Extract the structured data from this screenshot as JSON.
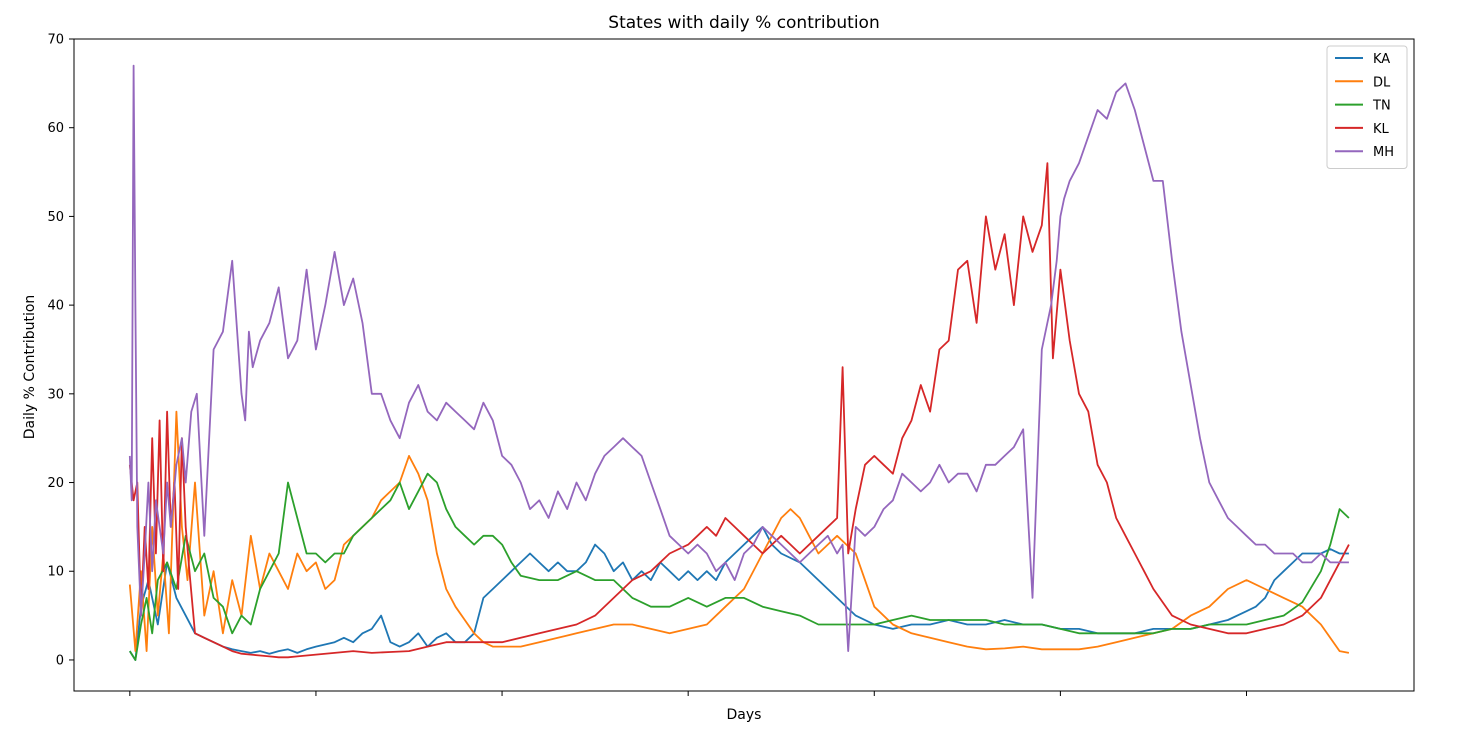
{
  "chart_data": {
    "type": "line",
    "title": "States with daily % contribution",
    "xlabel": "Days",
    "ylabel": "Daily % Contribution",
    "ylim": [
      -3.5,
      70
    ],
    "xlim": [
      -30,
      690
    ],
    "y_ticks": [
      0,
      10,
      20,
      30,
      40,
      50,
      60,
      70
    ],
    "x_ticks": [
      0,
      100,
      200,
      300,
      400,
      500,
      600
    ],
    "x_tick_labels_shown": false,
    "grid": false,
    "legend_position": "top-right",
    "series": [
      {
        "name": "KA",
        "color": "#1f77b4",
        "x": [
          0,
          3,
          6,
          10,
          15,
          20,
          25,
          30,
          35,
          40,
          45,
          50,
          55,
          60,
          65,
          70,
          75,
          80,
          85,
          90,
          95,
          100,
          110,
          115,
          120,
          125,
          130,
          135,
          140,
          145,
          150,
          155,
          160,
          165,
          170,
          175,
          180,
          185,
          190,
          195,
          200,
          205,
          210,
          215,
          220,
          225,
          230,
          235,
          240,
          245,
          250,
          255,
          260,
          265,
          270,
          275,
          280,
          285,
          290,
          295,
          300,
          305,
          310,
          315,
          320,
          325,
          330,
          335,
          340,
          345,
          350,
          360,
          370,
          380,
          390,
          400,
          410,
          420,
          430,
          440,
          450,
          460,
          470,
          480,
          490,
          500,
          510,
          520,
          530,
          540,
          550,
          560,
          570,
          580,
          590,
          600,
          605,
          610,
          615,
          620,
          625,
          630,
          635,
          640,
          645,
          650,
          655
        ],
        "values": [
          1,
          0,
          6,
          9,
          4,
          11,
          7,
          5,
          3,
          2.5,
          2,
          1.5,
          1.2,
          1,
          0.8,
          1,
          0.7,
          1,
          1.2,
          0.8,
          1.2,
          1.5,
          2,
          2.5,
          2,
          3,
          3.5,
          5,
          2,
          1.5,
          2,
          3,
          1.5,
          2.5,
          3,
          2,
          2,
          3,
          7,
          8,
          9,
          10,
          11,
          12,
          11,
          10,
          11,
          10,
          10,
          11,
          13,
          12,
          10,
          11,
          9,
          10,
          9,
          11,
          10,
          9,
          10,
          9,
          10,
          9,
          11,
          12,
          13,
          14,
          15,
          13,
          12,
          11,
          9,
          7,
          5,
          4,
          3.5,
          4,
          4,
          4.5,
          4,
          4,
          4.5,
          4,
          4,
          3.5,
          3.5,
          3,
          3,
          3,
          3.5,
          3.5,
          3.5,
          4,
          4.5,
          5.5,
          6,
          7,
          9,
          10,
          11,
          12,
          12,
          12,
          12.5,
          12,
          12
        ]
      },
      {
        "name": "DL",
        "color": "#ff7f0e",
        "x": [
          0,
          3,
          6,
          9,
          12,
          15,
          18,
          21,
          25,
          28,
          31,
          35,
          40,
          45,
          50,
          55,
          60,
          65,
          70,
          75,
          80,
          85,
          90,
          95,
          100,
          105,
          110,
          115,
          120,
          125,
          130,
          135,
          140,
          145,
          150,
          155,
          160,
          165,
          170,
          175,
          180,
          185,
          190,
          195,
          200,
          210,
          220,
          230,
          240,
          250,
          260,
          270,
          280,
          290,
          300,
          310,
          320,
          330,
          340,
          345,
          350,
          355,
          360,
          365,
          370,
          375,
          380,
          385,
          390,
          395,
          400,
          410,
          420,
          430,
          440,
          450,
          460,
          470,
          480,
          490,
          500,
          510,
          520,
          530,
          540,
          550,
          560,
          570,
          580,
          590,
          600,
          610,
          620,
          630,
          640,
          650,
          655
        ],
        "values": [
          8.5,
          1,
          10,
          1,
          15,
          5,
          12,
          3,
          28,
          15,
          9,
          20,
          5,
          10,
          3,
          9,
          5,
          14,
          8,
          12,
          10,
          8,
          12,
          10,
          11,
          8,
          9,
          13,
          14,
          15,
          16,
          18,
          19,
          20,
          23,
          21,
          18,
          12,
          8,
          6,
          4.5,
          3,
          2,
          1.5,
          1.5,
          1.5,
          2,
          2.5,
          3,
          3.5,
          4,
          4,
          3.5,
          3,
          3.5,
          4,
          6,
          8,
          12,
          14,
          16,
          17,
          16,
          14,
          12,
          13,
          14,
          13,
          12,
          9,
          6,
          4,
          3,
          2.5,
          2,
          1.5,
          1.2,
          1.3,
          1.5,
          1.2,
          1.2,
          1.2,
          1.5,
          2,
          2.5,
          3,
          3.5,
          5,
          6,
          8,
          9,
          8,
          7,
          6,
          4,
          1,
          0.8
        ]
      },
      {
        "name": "TN",
        "color": "#2ca02c",
        "x": [
          0,
          3,
          6,
          9,
          12,
          15,
          20,
          25,
          30,
          35,
          40,
          45,
          50,
          55,
          60,
          65,
          70,
          75,
          80,
          85,
          90,
          95,
          100,
          105,
          110,
          115,
          120,
          125,
          130,
          135,
          140,
          145,
          150,
          155,
          160,
          165,
          170,
          175,
          180,
          185,
          190,
          195,
          200,
          205,
          210,
          220,
          230,
          240,
          250,
          260,
          270,
          280,
          290,
          300,
          310,
          320,
          330,
          340,
          350,
          360,
          370,
          380,
          390,
          400,
          410,
          420,
          430,
          440,
          450,
          460,
          470,
          480,
          490,
          500,
          510,
          520,
          530,
          540,
          550,
          560,
          570,
          580,
          590,
          600,
          610,
          620,
          630,
          640,
          645,
          650,
          655
        ],
        "values": [
          1,
          0,
          4,
          7,
          3,
          9,
          11,
          8,
          14,
          10,
          12,
          7,
          6,
          3,
          5,
          4,
          8,
          10,
          12,
          20,
          16,
          12,
          12,
          11,
          12,
          12,
          14,
          15,
          16,
          17,
          18,
          20,
          17,
          19,
          21,
          20,
          17,
          15,
          14,
          13,
          14,
          14,
          13,
          11,
          9.5,
          9,
          9,
          10,
          9,
          9,
          7,
          6,
          6,
          7,
          6,
          7,
          7,
          6,
          5.5,
          5,
          4,
          4,
          4,
          4,
          4.5,
          5,
          4.5,
          4.5,
          4.5,
          4.5,
          4,
          4,
          4,
          3.5,
          3,
          3,
          3,
          3,
          3,
          3.5,
          3.5,
          4,
          4,
          4,
          4.5,
          5,
          6.5,
          10,
          13,
          17,
          16
        ]
      },
      {
        "name": "KL",
        "color": "#d62728",
        "x": [
          0,
          2,
          4,
          6,
          8,
          10,
          12,
          14,
          16,
          18,
          20,
          22,
          24,
          26,
          28,
          30,
          32,
          35,
          40,
          45,
          50,
          55,
          60,
          65,
          70,
          75,
          80,
          85,
          90,
          95,
          100,
          110,
          120,
          130,
          140,
          150,
          160,
          170,
          180,
          190,
          200,
          210,
          220,
          230,
          240,
          250,
          260,
          270,
          280,
          290,
          300,
          305,
          310,
          315,
          320,
          325,
          330,
          335,
          340,
          345,
          350,
          355,
          360,
          370,
          380,
          383,
          386,
          390,
          395,
          400,
          405,
          410,
          415,
          420,
          425,
          430,
          435,
          440,
          445,
          450,
          455,
          460,
          465,
          470,
          475,
          480,
          485,
          490,
          493,
          496,
          500,
          505,
          510,
          515,
          520,
          525,
          530,
          535,
          540,
          545,
          550,
          560,
          570,
          580,
          590,
          600,
          610,
          620,
          630,
          640,
          645,
          650,
          655
        ],
        "values": [
          22,
          18,
          20,
          5,
          15,
          8,
          25,
          12,
          27,
          10,
          28,
          15,
          20,
          8,
          25,
          15,
          10,
          3,
          2.5,
          2,
          1.5,
          1,
          0.7,
          0.6,
          0.5,
          0.4,
          0.3,
          0.3,
          0.4,
          0.5,
          0.6,
          0.8,
          1,
          0.8,
          0.9,
          1,
          1.5,
          2,
          2,
          2,
          2,
          2.5,
          3,
          3.5,
          4,
          5,
          7,
          9,
          10,
          12,
          13,
          14,
          15,
          14,
          16,
          15,
          14,
          13,
          12,
          13,
          14,
          13,
          12,
          14,
          16,
          33,
          12,
          17,
          22,
          23,
          22,
          21,
          25,
          27,
          31,
          28,
          35,
          36,
          44,
          45,
          38,
          50,
          44,
          48,
          40,
          50,
          46,
          49,
          56,
          34,
          44,
          36,
          30,
          28,
          22,
          20,
          16,
          14,
          12,
          10,
          8,
          5,
          4,
          3.5,
          3,
          3,
          3.5,
          4,
          5,
          7,
          9,
          11,
          13
        ]
      },
      {
        "name": "MH",
        "color": "#9467bd",
        "x": [
          0,
          1,
          2,
          3,
          4,
          6,
          8,
          10,
          12,
          14,
          16,
          18,
          20,
          22,
          25,
          28,
          30,
          33,
          36,
          40,
          45,
          50,
          55,
          60,
          62,
          64,
          66,
          70,
          75,
          80,
          85,
          90,
          95,
          100,
          105,
          110,
          115,
          120,
          125,
          130,
          135,
          140,
          145,
          150,
          155,
          160,
          165,
          170,
          175,
          180,
          185,
          190,
          195,
          200,
          205,
          210,
          215,
          220,
          225,
          230,
          235,
          240,
          245,
          250,
          255,
          260,
          265,
          270,
          275,
          280,
          285,
          290,
          295,
          300,
          305,
          310,
          315,
          320,
          325,
          330,
          335,
          340,
          345,
          350,
          355,
          360,
          365,
          370,
          375,
          380,
          383,
          386,
          390,
          395,
          400,
          405,
          410,
          415,
          420,
          425,
          430,
          435,
          440,
          445,
          450,
          455,
          460,
          465,
          470,
          475,
          480,
          485,
          490,
          495,
          498,
          500,
          502,
          505,
          510,
          515,
          520,
          525,
          530,
          535,
          540,
          545,
          550,
          555,
          560,
          565,
          570,
          575,
          580,
          585,
          590,
          595,
          600,
          605,
          610,
          615,
          620,
          625,
          630,
          635,
          640,
          645,
          650,
          655
        ],
        "values": [
          23,
          18,
          67,
          40,
          15,
          5,
          12,
          20,
          10,
          18,
          15,
          12,
          20,
          15,
          22,
          25,
          20,
          28,
          30,
          14,
          35,
          37,
          45,
          30,
          27,
          37,
          33,
          36,
          38,
          42,
          34,
          36,
          44,
          35,
          40,
          46,
          40,
          43,
          38,
          30,
          30,
          27,
          25,
          29,
          31,
          28,
          27,
          29,
          28,
          27,
          26,
          29,
          27,
          23,
          22,
          20,
          17,
          18,
          16,
          19,
          17,
          20,
          18,
          21,
          23,
          24,
          25,
          24,
          23,
          20,
          17,
          14,
          13,
          12,
          13,
          12,
          10,
          11,
          9,
          12,
          13,
          15,
          14,
          13,
          12,
          11,
          12,
          13,
          14,
          12,
          13,
          1,
          15,
          14,
          15,
          17,
          18,
          21,
          20,
          19,
          20,
          22,
          20,
          21,
          21,
          19,
          22,
          22,
          23,
          24,
          26,
          7,
          35,
          40,
          45,
          50,
          52,
          54,
          56,
          59,
          62,
          61,
          64,
          65,
          62,
          58,
          54,
          54,
          45,
          37,
          31,
          25,
          20,
          18,
          16,
          15,
          14,
          13,
          13,
          12,
          12,
          12,
          11,
          11,
          12,
          11,
          11,
          11
        ]
      }
    ]
  }
}
